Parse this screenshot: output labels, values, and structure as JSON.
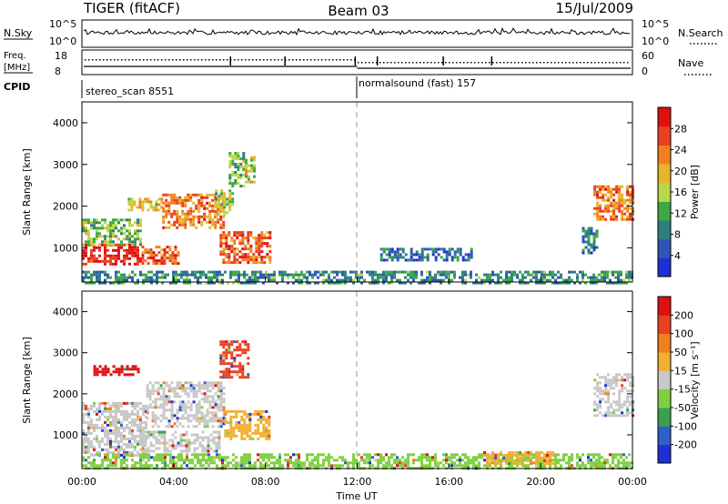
{
  "header": {
    "radar": "TIGER (fitACF)",
    "beam": "Beam 03",
    "date": "15/Jul/2009"
  },
  "nsky_panel": {
    "left_label": "N.Sky",
    "left_ticks": [
      "10^5",
      "10^0"
    ],
    "right_label": "N.Search",
    "right_ticks": [
      "10^5",
      "10^0"
    ]
  },
  "freq_panel": {
    "left_label_1": "Freq.",
    "left_label_2": "[MHz]",
    "left_ticks": [
      "18",
      "8"
    ],
    "right_label": "Nave",
    "right_ticks": [
      "60",
      "0"
    ]
  },
  "cpid": {
    "label": "CPID",
    "modes": [
      {
        "name": "stereo_scan 8551",
        "start": 0
      },
      {
        "name": "normalsound (fast) 157",
        "start": 12
      }
    ]
  },
  "chart_data": [
    {
      "type": "heatmap",
      "title": "",
      "xlabel": "",
      "ylabel": "Slant Range [km]",
      "xlim": [
        0,
        24
      ],
      "ylim": [
        180,
        4500
      ],
      "yticks": [
        "1000",
        "2000",
        "3000",
        "4000"
      ],
      "colorbar": {
        "label": "Power [dB]",
        "range": [
          0,
          32
        ],
        "ticks": [
          "4",
          "8",
          "12",
          "16",
          "20",
          "24",
          "28"
        ],
        "colors": [
          "#1f2fd6",
          "#2f55b8",
          "#2e8080",
          "#3da845",
          "#b8d84a",
          "#e8b52a",
          "#f08020",
          "#e84020",
          "#e01010"
        ]
      },
      "regions": [
        {
          "x": [
            0.0,
            2.6
          ],
          "y": [
            600,
            1100
          ],
          "level": 0.95
        },
        {
          "x": [
            2.6,
            4.2
          ],
          "y": [
            650,
            1050
          ],
          "level": 0.8
        },
        {
          "x": [
            0.0,
            2.5
          ],
          "y": [
            1100,
            1700
          ],
          "level": 0.45
        },
        {
          "x": [
            2.0,
            3.5
          ],
          "y": [
            1900,
            2200
          ],
          "level": 0.6
        },
        {
          "x": [
            3.5,
            6.2
          ],
          "y": [
            1500,
            2300
          ],
          "level": 0.75
        },
        {
          "x": [
            5.8,
            6.6
          ],
          "y": [
            1800,
            2400
          ],
          "level": 0.5
        },
        {
          "x": [
            6.0,
            8.2
          ],
          "y": [
            650,
            1400
          ],
          "level": 0.8
        },
        {
          "x": [
            6.4,
            7.0
          ],
          "y": [
            2500,
            3300
          ],
          "level": 0.4
        },
        {
          "x": [
            7.1,
            7.5
          ],
          "y": [
            2600,
            3200
          ],
          "level": 0.55
        },
        {
          "x": [
            0.0,
            24.0
          ],
          "y": [
            180,
            450
          ],
          "level": 0.3
        },
        {
          "x": [
            22.3,
            24.0
          ],
          "y": [
            1700,
            2500
          ],
          "level": 0.75
        },
        {
          "x": [
            21.8,
            22.4
          ],
          "y": [
            900,
            1500
          ],
          "level": 0.25
        },
        {
          "x": [
            13.0,
            17.0
          ],
          "y": [
            700,
            1000
          ],
          "level": 0.2
        }
      ]
    },
    {
      "type": "heatmap",
      "title": "",
      "xlabel": "Time UT",
      "ylabel": "Slant Range [km]",
      "xlim": [
        0,
        24
      ],
      "ylim": [
        180,
        4500
      ],
      "xticks": [
        "00:00",
        "04:00",
        "08:00",
        "12:00",
        "16:00",
        "20:00",
        "00:00"
      ],
      "yticks": [
        "1000",
        "2000",
        "3000",
        "4000"
      ],
      "colorbar": {
        "label": "Velocity [m s⁻¹]",
        "range": [
          -250,
          250
        ],
        "ticks": [
          "200",
          "100",
          "50",
          "15",
          "-15",
          "-50",
          "-100",
          "-200"
        ],
        "colors": [
          "#1f2fd6",
          "#2f5fc8",
          "#3aa050",
          "#7fd040",
          "#c8c8c8",
          "#f0b030",
          "#f08020",
          "#e84020",
          "#e01010"
        ]
      },
      "regions": [
        {
          "x": [
            0.0,
            2.8
          ],
          "y": [
            500,
            1800
          ],
          "color": "#c8c8c8"
        },
        {
          "x": [
            2.8,
            6.2
          ],
          "y": [
            1200,
            2300
          ],
          "color": "#c8c8c8"
        },
        {
          "x": [
            2.6,
            6.0
          ],
          "y": [
            600,
            1100
          ],
          "color": "#c8c8c8"
        },
        {
          "x": [
            6.2,
            8.2
          ],
          "y": [
            900,
            1600
          ],
          "color": "#f0b030"
        },
        {
          "x": [
            6.0,
            7.3
          ],
          "y": [
            2400,
            3300
          ],
          "color": "#e84020"
        },
        {
          "x": [
            0.5,
            2.5
          ],
          "y": [
            2500,
            2700
          ],
          "color": "#e01010"
        },
        {
          "x": [
            0.0,
            24.0
          ],
          "y": [
            180,
            550
          ],
          "color": "#7fd040"
        },
        {
          "x": [
            17.5,
            20.5
          ],
          "y": [
            300,
            600
          ],
          "color": "#f0b030"
        },
        {
          "x": [
            22.3,
            24.0
          ],
          "y": [
            1500,
            2500
          ],
          "color": "#c8c8c8"
        }
      ]
    }
  ]
}
